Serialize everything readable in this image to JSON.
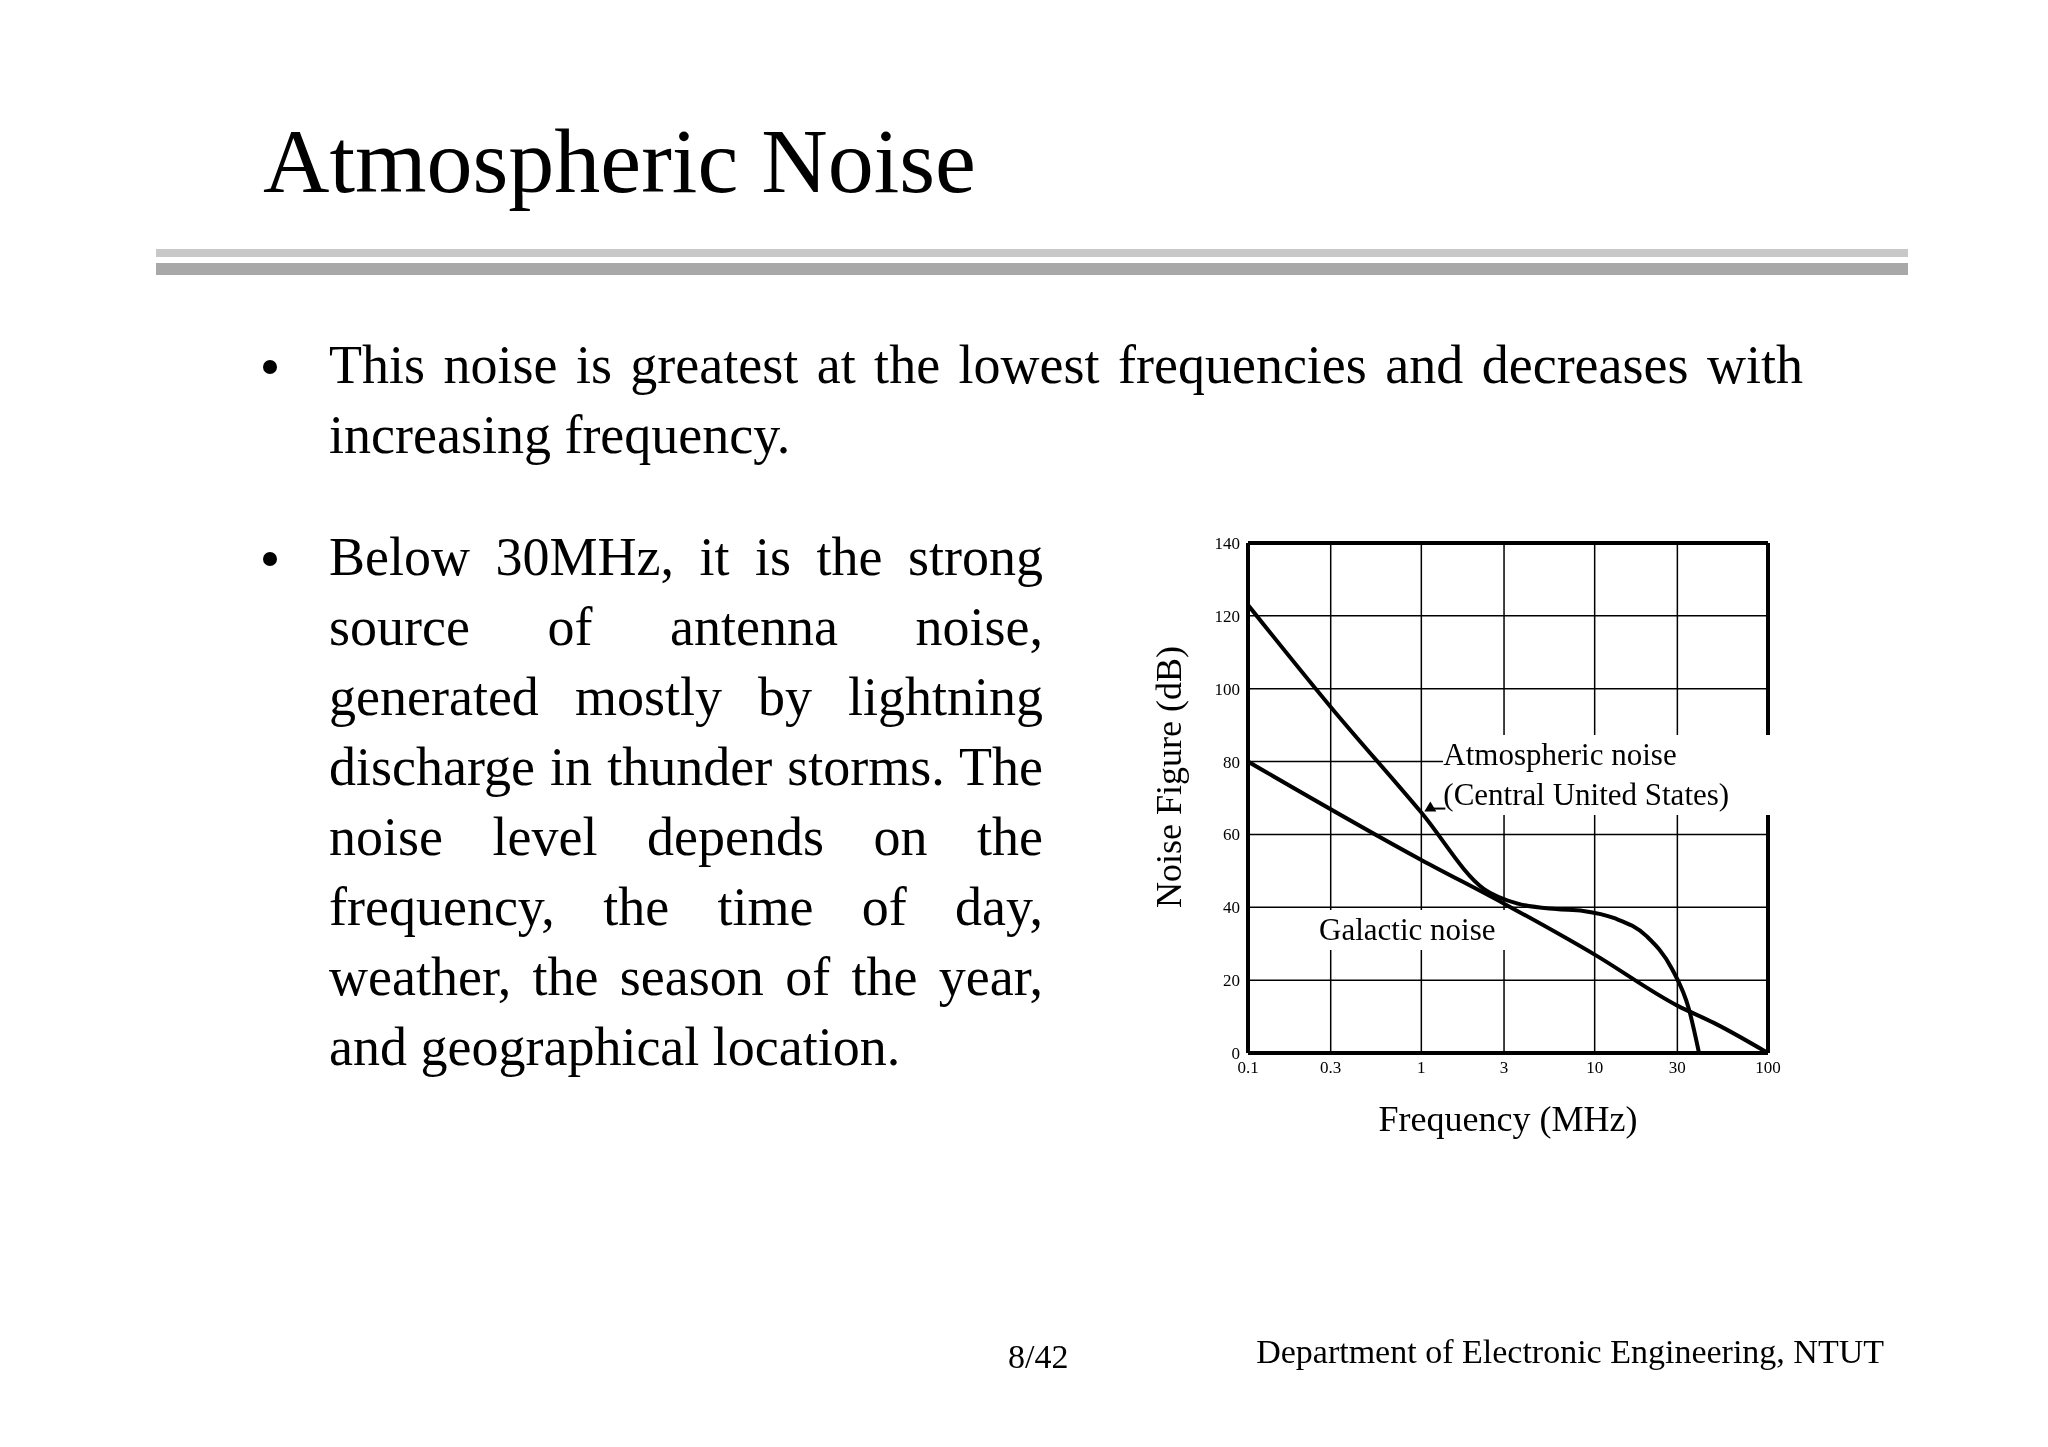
{
  "chart_data": {
    "type": "line",
    "title": "Atmospheric Noise",
    "xlabel": "Frequency (MHz)",
    "ylabel": "Noise Figure (dB)",
    "log": "x",
    "xlim": [
      0.1,
      100
    ],
    "xticks": [
      0.1,
      0.3,
      1,
      3,
      10,
      30,
      100
    ],
    "ylim": [
      0,
      140
    ],
    "yticks": [
      0,
      20,
      40,
      60,
      80,
      100,
      120,
      140
    ],
    "grid": true,
    "legend": false,
    "marker": "none",
    "line_style": "solid",
    "series": [
      {
        "name": "Atmospheric noise (Central United States)",
        "color": "#000000",
        "x": [
          0.1,
          0.3,
          1,
          2.3,
          3.6,
          6,
          8.6,
          13,
          20,
          28,
          35,
          40
        ],
        "values": [
          123,
          95,
          66,
          45,
          41,
          39.5,
          39,
          37,
          32,
          23,
          12,
          0
        ]
      },
      {
        "name": "Galactic noise",
        "color": "#000000",
        "x": [
          0.1,
          1,
          3,
          10,
          30,
          50,
          100
        ],
        "values": [
          80,
          53,
          41,
          27,
          13,
          8,
          0
        ]
      }
    ],
    "annotations": [
      "This noise is greatest at the lowest frequencies and decreases with increasing frequency.",
      "Below 30MHz, it is the strong source of antenna noise, generated mostly by lightning discharge in thunder storms. The noise level depends on the frequency, the time of day, weather, the season of the year, and geographical location.",
      "8/42",
      "Department of Electronic Engineering, NTUT"
    ]
  }
}
